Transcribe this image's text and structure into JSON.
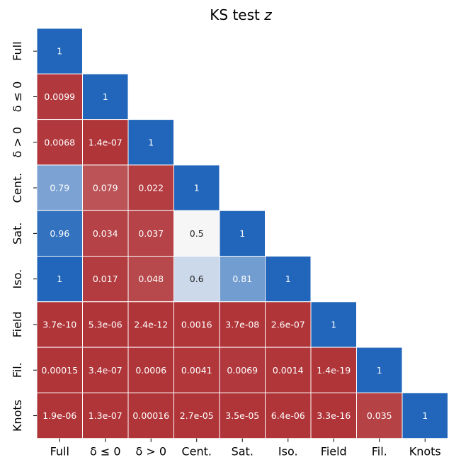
{
  "chart_data": {
    "type": "heatmap",
    "title": "KS test z",
    "title_parts": [
      "KS test ",
      "z"
    ],
    "x_categories": [
      "Full",
      "δ ≤ 0",
      "δ > 0",
      "Cent.",
      "Sat.",
      "Iso.",
      "Field",
      "Fil.",
      "Knots"
    ],
    "y_categories": [
      "Full",
      "δ ≤ 0",
      "δ > 0",
      "Cent.",
      "Sat.",
      "Iso.",
      "Field",
      "Fil.",
      "Knots"
    ],
    "lower_triangular": true,
    "values": [
      [
        1
      ],
      [
        0.0099,
        1
      ],
      [
        0.0068,
        1.4e-07,
        1
      ],
      [
        0.79,
        0.079,
        0.022,
        1
      ],
      [
        0.96,
        0.034,
        0.037,
        0.5,
        1
      ],
      [
        1,
        0.017,
        0.048,
        0.6,
        0.81,
        1
      ],
      [
        3.7e-10,
        5.3e-06,
        2.4e-12,
        0.0016,
        3.7e-08,
        2.6e-07,
        1
      ],
      [
        0.00015,
        3.4e-07,
        0.0006,
        0.0041,
        0.0069,
        0.0014,
        1.4e-19,
        1
      ],
      [
        1.9e-06,
        1.3e-07,
        0.00016,
        2.7e-05,
        3.5e-05,
        6.4e-06,
        3.3e-16,
        0.035,
        1
      ]
    ],
    "labels": [
      [
        "1"
      ],
      [
        "0.0099",
        "1"
      ],
      [
        "0.0068",
        "1.4e-07",
        "1"
      ],
      [
        "0.79",
        "0.079",
        "0.022",
        "1"
      ],
      [
        "0.96",
        "0.034",
        "0.037",
        "0.5",
        "1"
      ],
      [
        "1",
        "0.017",
        "0.048",
        "0.6",
        "0.81",
        "1"
      ],
      [
        "3.7e-10",
        "5.3e-06",
        "2.4e-12",
        "0.0016",
        "3.7e-08",
        "2.6e-07",
        "1"
      ],
      [
        "0.00015",
        "3.4e-07",
        "0.0006",
        "0.0041",
        "0.0069",
        "0.0014",
        "1.4e-19",
        "1"
      ],
      [
        "1.9e-06",
        "1.3e-07",
        "0.00016",
        "2.7e-05",
        "3.5e-05",
        "6.4e-06",
        "3.3e-16",
        "0.035",
        "1"
      ]
    ],
    "colormap": {
      "low": "#b03539",
      "mid": "#f7f6f6",
      "high": "#2166ba",
      "vmin": 0,
      "center": 0.5,
      "vmax": 1
    },
    "colorbar": false,
    "grid": false,
    "legend": "none"
  }
}
